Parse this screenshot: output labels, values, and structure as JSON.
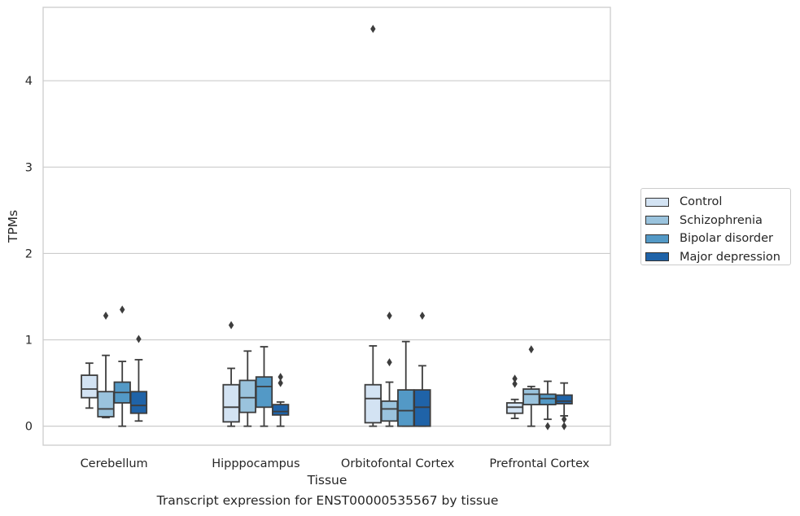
{
  "chart_data": {
    "type": "box",
    "title": "",
    "caption": "Transcript expression for ENST00000535567 by tissue",
    "xlabel": "Tissue",
    "ylabel": "TPMs",
    "ylim": [
      -0.22,
      4.85
    ],
    "yticks": [
      "0",
      "1",
      "2",
      "3",
      "4"
    ],
    "ytick_values": [
      0,
      1,
      2,
      3,
      4
    ],
    "grid": true,
    "legend_position": "right",
    "categories": [
      "Cerebellum",
      "Hipppocampus",
      "Orbitofontal Cortex",
      "Prefrontal Cortex"
    ],
    "series": [
      {
        "name": "Control",
        "color": "#d3e3f3",
        "boxes": [
          {
            "whislo": 0.21,
            "q1": 0.33,
            "med": 0.43,
            "q3": 0.59,
            "whishi": 0.73,
            "fliers": []
          },
          {
            "whislo": 0.0,
            "q1": 0.05,
            "med": 0.22,
            "q3": 0.48,
            "whishi": 0.67,
            "fliers": [
              1.17
            ]
          },
          {
            "whislo": 0.0,
            "q1": 0.04,
            "med": 0.32,
            "q3": 0.48,
            "whishi": 0.93,
            "fliers": [
              4.6
            ]
          },
          {
            "whislo": 0.09,
            "q1": 0.15,
            "med": 0.22,
            "q3": 0.27,
            "whishi": 0.31,
            "fliers": [
              0.49,
              0.55
            ]
          }
        ]
      },
      {
        "name": "Schizophrenia",
        "color": "#9ac3dd",
        "boxes": [
          {
            "whislo": 0.1,
            "q1": 0.11,
            "med": 0.2,
            "q3": 0.4,
            "whishi": 0.82,
            "fliers": [
              1.28
            ]
          },
          {
            "whislo": 0.0,
            "q1": 0.16,
            "med": 0.33,
            "q3": 0.53,
            "whishi": 0.87,
            "fliers": []
          },
          {
            "whislo": 0.0,
            "q1": 0.06,
            "med": 0.2,
            "q3": 0.29,
            "whishi": 0.51,
            "fliers": [
              0.74,
              1.28
            ]
          },
          {
            "whislo": 0.0,
            "q1": 0.25,
            "med": 0.37,
            "q3": 0.43,
            "whishi": 0.46,
            "fliers": [
              0.89
            ]
          }
        ]
      },
      {
        "name": "Bipolar disorder",
        "color": "#5399c6",
        "boxes": [
          {
            "whislo": 0.0,
            "q1": 0.27,
            "med": 0.39,
            "q3": 0.51,
            "whishi": 0.75,
            "fliers": [
              1.35
            ]
          },
          {
            "whislo": 0.0,
            "q1": 0.22,
            "med": 0.46,
            "q3": 0.57,
            "whishi": 0.92,
            "fliers": []
          },
          {
            "whislo": 0.0,
            "q1": 0.0,
            "med": 0.18,
            "q3": 0.42,
            "whishi": 0.98,
            "fliers": []
          },
          {
            "whislo": 0.08,
            "q1": 0.25,
            "med": 0.32,
            "q3": 0.37,
            "whishi": 0.52,
            "fliers": [
              0.0
            ]
          }
        ]
      },
      {
        "name": "Major depression",
        "color": "#1f63a8",
        "boxes": [
          {
            "whislo": 0.06,
            "q1": 0.15,
            "med": 0.24,
            "q3": 0.4,
            "whishi": 0.77,
            "fliers": [
              1.01
            ]
          },
          {
            "whislo": 0.0,
            "q1": 0.13,
            "med": 0.17,
            "q3": 0.25,
            "whishi": 0.28,
            "fliers": [
              0.5,
              0.57
            ]
          },
          {
            "whislo": 0.0,
            "q1": 0.0,
            "med": 0.22,
            "q3": 0.42,
            "whishi": 0.7,
            "fliers": [
              1.28
            ]
          },
          {
            "whislo": 0.12,
            "q1": 0.26,
            "med": 0.29,
            "q3": 0.36,
            "whishi": 0.5,
            "fliers": [
              0.0,
              0.08
            ]
          }
        ]
      }
    ]
  }
}
